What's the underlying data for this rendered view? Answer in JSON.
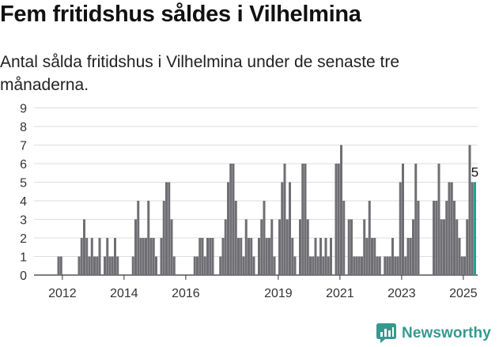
{
  "header": {
    "title": "Fem fritidshus såldes i Vilhelmina",
    "subtitle": "Antal sålda fritidshus i Vilhelmina under de senaste tre månaderna."
  },
  "brand": {
    "name": "Newsworthy",
    "color": "#35998f"
  },
  "colors": {
    "bar": "#6f6f73",
    "highlight": "#2a9d91",
    "grid": "#dddddd"
  },
  "chart_data": {
    "type": "bar",
    "title": "",
    "xlabel": "",
    "ylabel": "",
    "ylim": [
      0,
      9
    ],
    "yticks": [
      0,
      1,
      2,
      3,
      4,
      5,
      6,
      7,
      8,
      9
    ],
    "xticks": [
      "2012",
      "2014",
      "2016",
      "2019",
      "2021",
      "2023",
      "2025"
    ],
    "grid": true,
    "x_start": "2011-11",
    "x_unit": "month",
    "highlight_label": "5",
    "values": [
      1,
      1,
      0,
      0,
      0,
      0,
      0,
      0,
      1,
      2,
      3,
      2,
      1,
      2,
      1,
      1,
      2,
      0,
      1,
      2,
      1,
      1,
      2,
      1,
      0,
      0,
      0,
      0,
      0,
      1,
      3,
      4,
      2,
      2,
      2,
      4,
      2,
      2,
      1,
      0,
      2,
      4,
      5,
      5,
      3,
      1,
      0,
      0,
      0,
      0,
      0,
      0,
      0,
      1,
      1,
      2,
      2,
      1,
      2,
      2,
      2,
      0,
      0,
      1,
      2,
      3,
      5,
      6,
      6,
      4,
      2,
      2,
      1,
      3,
      2,
      2,
      1,
      0,
      2,
      3,
      4,
      2,
      2,
      3,
      1,
      0,
      3,
      5,
      6,
      3,
      5,
      2,
      1,
      0,
      3,
      6,
      6,
      3,
      1,
      1,
      2,
      1,
      2,
      1,
      2,
      1,
      2,
      0,
      6,
      6,
      7,
      4,
      0,
      3,
      3,
      1,
      1,
      1,
      1,
      3,
      2,
      4,
      2,
      2,
      1,
      1,
      0,
      1,
      1,
      1,
      2,
      1,
      1,
      5,
      6,
      1,
      2,
      2,
      3,
      6,
      4,
      0,
      0,
      0,
      0,
      0,
      4,
      4,
      6,
      3,
      3,
      4,
      5,
      5,
      4,
      3,
      2,
      1,
      1,
      3,
      7,
      5,
      5
    ],
    "highlight_values": [
      0,
      0,
      0,
      0,
      0,
      0,
      0,
      0,
      0,
      0,
      0,
      0,
      0,
      0,
      0,
      0,
      0,
      0,
      0,
      0,
      0,
      0,
      0,
      0,
      0,
      0,
      0,
      0,
      0,
      0,
      0,
      0,
      0,
      0,
      0,
      0,
      0,
      0,
      0,
      0,
      0,
      0,
      0,
      0,
      0,
      0,
      0,
      0,
      0,
      0,
      0,
      0,
      0,
      0,
      0,
      0,
      0,
      0,
      0,
      0,
      0,
      0,
      0,
      0,
      0,
      0,
      0,
      0,
      0,
      0,
      0,
      0,
      0,
      0,
      0,
      0,
      0,
      0,
      0,
      0,
      0,
      0,
      0,
      0,
      0,
      0,
      0,
      0,
      0,
      0,
      0,
      0,
      0,
      0,
      0,
      0,
      0,
      0,
      0,
      0,
      0,
      0,
      0,
      0,
      0,
      0,
      0,
      0,
      0,
      0,
      0,
      0,
      0,
      0,
      0,
      0,
      0,
      0,
      0,
      0,
      0,
      0,
      0,
      0,
      0,
      0,
      0,
      0,
      0,
      0,
      0,
      0,
      0,
      0,
      0,
      0,
      0,
      0,
      0,
      0,
      0,
      0,
      0,
      0,
      0,
      0,
      0,
      0,
      0,
      0,
      0,
      0,
      0,
      0,
      0,
      0,
      0,
      0,
      0,
      0,
      0,
      0,
      5
    ]
  }
}
